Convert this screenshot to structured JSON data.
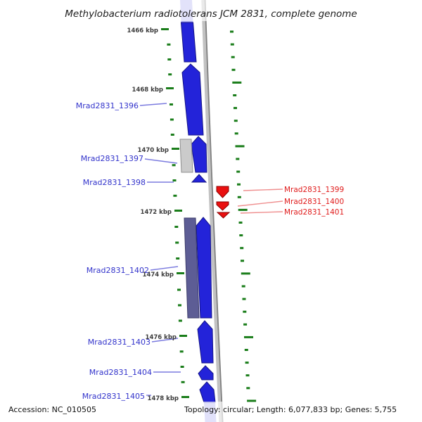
{
  "title": "Methylobacterium radiotolerans JCM 2831, complete genome",
  "ruler_labels": [
    {
      "text": "1466 kbp"
    },
    {
      "text": "1468 kbp"
    },
    {
      "text": "1470 kbp"
    },
    {
      "text": "1472 kbp"
    },
    {
      "text": "1474 kbp"
    },
    {
      "text": "1476 kbp"
    },
    {
      "text": "1478 kbp"
    }
  ],
  "genes": {
    "forward": [
      {
        "label": "Mrad2831_1396",
        "strand": "+"
      },
      {
        "label": "Mrad2831_1397",
        "strand": "+"
      },
      {
        "label": "Mrad2831_1398",
        "strand": "+"
      },
      {
        "label": "Mrad2831_1402",
        "strand": "+"
      },
      {
        "label": "Mrad2831_1403",
        "strand": "+"
      },
      {
        "label": "Mrad2831_1404",
        "strand": "+"
      },
      {
        "label": "Mrad2831_1405",
        "strand": "+"
      }
    ],
    "reverse": [
      {
        "label": "Mrad2831_1399",
        "strand": "-"
      },
      {
        "label": "Mrad2831_1400",
        "strand": "-"
      },
      {
        "label": "Mrad2831_1401",
        "strand": "-"
      }
    ]
  },
  "status_bar": {
    "accession": "Accession: NC_010505",
    "topology": "Topology: circular; Length: 6,077,833 bp; Genes: 5,755"
  },
  "colors": {
    "forward_gene": "#2323d9",
    "forward_gene_faded": "#b9bdf2",
    "reverse_gene": "#ea1010",
    "gray_gene": "#cbcbcb",
    "purple_gene": "#5d5d95",
    "ruler_tick": "#1a7d1a",
    "axis": "#c2c2c2",
    "axis_edge": "#7f7f7f",
    "forward_label": "#3233cb",
    "reverse_label": "#e01b1b"
  }
}
